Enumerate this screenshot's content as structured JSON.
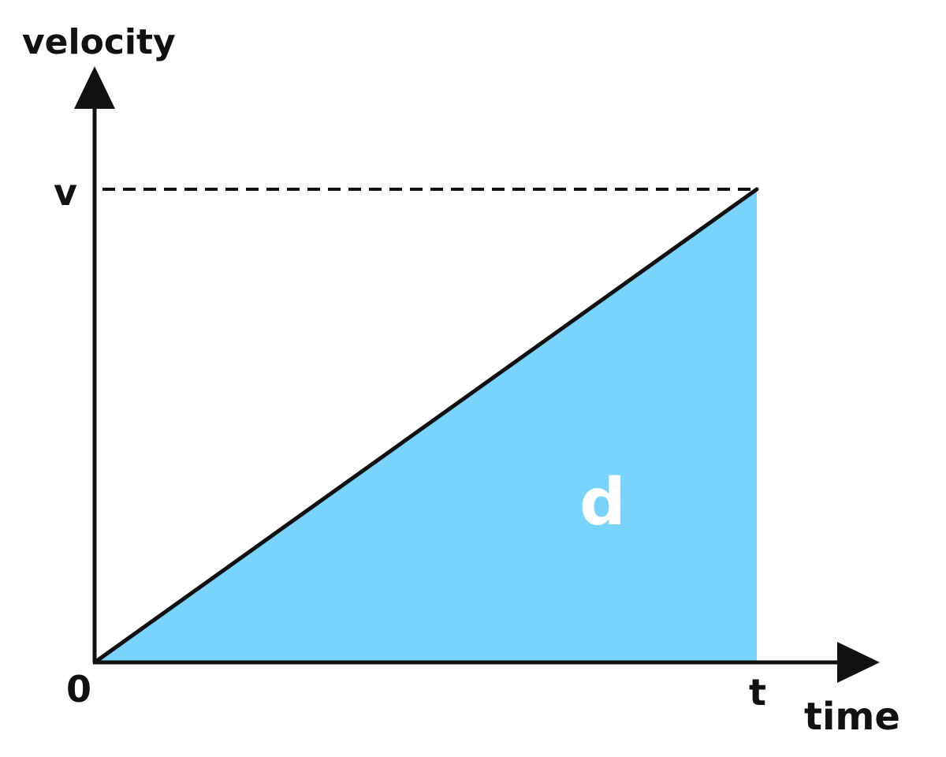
{
  "axes": {
    "y_label": "velocity",
    "x_label": "time"
  },
  "ticks": {
    "origin": "0",
    "y_tick": "v",
    "x_tick": "t"
  },
  "area": {
    "label": "d",
    "fill_color": "#78D4FC"
  },
  "line_color": "#111111"
}
